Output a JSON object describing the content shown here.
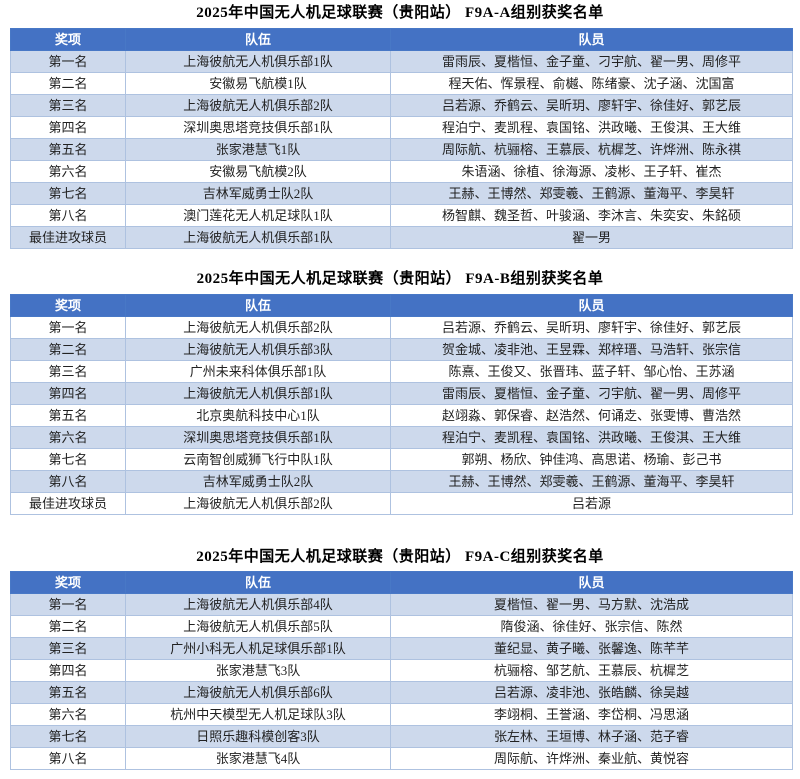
{
  "colors": {
    "header_bg": "#4472C4",
    "header_text": "#FFFFFF",
    "header_border": "#4878C6",
    "band_bg": "#CDD9EC",
    "row_bg": "#FFFFFF",
    "grid_border": "#AEC2E0",
    "title_text": "#000000"
  },
  "table_headers": {
    "award": "奖项",
    "team": "队伍",
    "players": "队员"
  },
  "sections": [
    {
      "title": "2025年中国无人机足球联赛（贵阳站）  F9A-A组别获奖名单",
      "banding": "odd",
      "rows": [
        {
          "award": "第一名",
          "team": "上海彼航无人机俱乐部1队",
          "players": "雷雨辰、夏楷恒、金子童、刁宇航、翟一男、周修平"
        },
        {
          "award": "第二名",
          "team": "安徽易飞航模1队",
          "players": "程天佑、恽景程、俞樾、陈绪豪、沈子涵、沈国富"
        },
        {
          "award": "第三名",
          "team": "上海彼航无人机俱乐部2队",
          "players": "吕若源、乔鹤云、吴昕玥、廖轩宇、徐佳好、郭艺辰"
        },
        {
          "award": "第四名",
          "team": "深圳奥思塔竞技俱乐部1队",
          "players": "程泊宁、麦凯程、袁国铭、洪政曦、王俊淇、王大维"
        },
        {
          "award": "第五名",
          "team": "张家港慧飞1队",
          "players": "周际航、杭骊榕、王慕辰、杭樨芝、许烨洲、陈永祺"
        },
        {
          "award": "第六名",
          "team": "安徽易飞航模2队",
          "players": "朱语涵、徐植、徐海源、凌彬、王子轩、崔杰"
        },
        {
          "award": "第七名",
          "team": "吉林军威勇士队2队",
          "players": "王赫、王博然、郑雯羲、王鹤源、董海平、李昊轩"
        },
        {
          "award": "第八名",
          "team": "澳门莲花无人机足球队1队",
          "players": "杨智麒、魏圣哲、叶骏涵、李沐言、朱奕安、朱銘硕"
        },
        {
          "award": "最佳进攻球员",
          "team": "上海彼航无人机俱乐部1队",
          "players": "翟一男"
        }
      ]
    },
    {
      "title": "2025年中国无人机足球联赛（贵阳站）  F9A-B组别获奖名单",
      "banding": "even",
      "rows": [
        {
          "award": "第一名",
          "team": "上海彼航无人机俱乐部2队",
          "players": "吕若源、乔鹤云、吴昕玥、廖轩宇、徐佳好、郭艺辰"
        },
        {
          "award": "第二名",
          "team": "上海彼航无人机俱乐部3队",
          "players": "贺金城、凌非池、王昱霖、郑梓瑨、马浩轩、张宗信"
        },
        {
          "award": "第三名",
          "team": "广州未来科体俱乐部1队",
          "players": "陈熹、王俊又、张晋玮、蓝子轩、邹心怡、王苏涵"
        },
        {
          "award": "第四名",
          "team": "上海彼航无人机俱乐部1队",
          "players": "雷雨辰、夏楷恒、金子童、刁宇航、翟一男、周修平"
        },
        {
          "award": "第五名",
          "team": "北京奥航科技中心1队",
          "players": "赵翊淼、郭保睿、赵浩然、何诵赱、张雯博、曹浩然"
        },
        {
          "award": "第六名",
          "team": "深圳奥思塔竞技俱乐部1队",
          "players": "程泊宁、麦凯程、袁国铭、洪政曦、王俊淇、王大维"
        },
        {
          "award": "第七名",
          "team": "云南智创威狮飞行中队1队",
          "players": "郭朔、杨欣、钟佳鸿、高思诺、杨瑜、彭己书"
        },
        {
          "award": "第八名",
          "team": "吉林军威勇士队2队",
          "players": "王赫、王博然、郑雯羲、王鹤源、董海平、李昊轩"
        },
        {
          "award": "最佳进攻球员",
          "team": "上海彼航无人机俱乐部2队",
          "players": "吕若源"
        }
      ]
    },
    {
      "title": "2025年中国无人机足球联赛（贵阳站）  F9A-C组别获奖名单",
      "banding": "odd",
      "rows": [
        {
          "award": "第一名",
          "team": "上海彼航无人机俱乐部4队",
          "players": "夏楷恒、翟一男、马方默、沈浩成"
        },
        {
          "award": "第二名",
          "team": "上海彼航无人机俱乐部5队",
          "players": "隋俊涵、徐佳好、张宗信、陈然"
        },
        {
          "award": "第三名",
          "team": "广州小科无人机足球俱乐部1队",
          "players": "董纪显、黄子曦、张馨逸、陈芊芊"
        },
        {
          "award": "第四名",
          "team": "张家港慧飞3队",
          "players": "杭骊榕、邹艺航、王慕辰、杭樨芝"
        },
        {
          "award": "第五名",
          "team": "上海彼航无人机俱乐部6队",
          "players": "吕若源、凌非池、张皓麟、徐吴越"
        },
        {
          "award": "第六名",
          "team": "杭州中天模型无人机足球队3队",
          "players": "李翊桐、王誉涵、李岱桐、冯思涵"
        },
        {
          "award": "第七名",
          "team": "日照乐趣科模创客3队",
          "players": "张左林、王垣博、林子涵、范子睿"
        },
        {
          "award": "第八名",
          "team": "张家港慧飞4队",
          "players": "周际航、许烨洲、秦业航、黄悦容"
        }
      ]
    }
  ]
}
